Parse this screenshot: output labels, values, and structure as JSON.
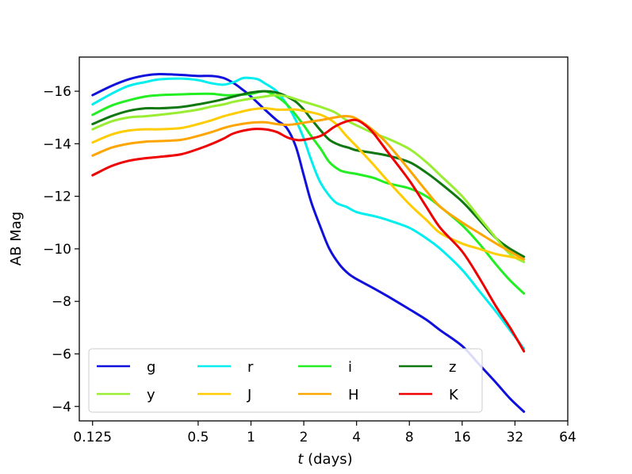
{
  "chart_data": {
    "type": "line",
    "title": "",
    "xlabel_var": "t",
    "xlabel_unit": " (days)",
    "ylabel": "AB Mag",
    "xscale": "log2",
    "xlim": [
      0.105,
      64
    ],
    "ylim": [
      -3.45,
      -17.3
    ],
    "y_inverted": true,
    "x_ticks": [
      {
        "value": 0.125,
        "label": "0.125"
      },
      {
        "value": 0.5,
        "label": "0.5"
      },
      {
        "value": 1,
        "label": "1"
      },
      {
        "value": 2,
        "label": "2"
      },
      {
        "value": 4,
        "label": "4"
      },
      {
        "value": 8,
        "label": "8"
      },
      {
        "value": 16,
        "label": "16"
      },
      {
        "value": 32,
        "label": "32"
      },
      {
        "value": 64,
        "label": "64"
      }
    ],
    "y_ticks": [
      {
        "value": -16,
        "label": "−16"
      },
      {
        "value": -14,
        "label": "−14"
      },
      {
        "value": -12,
        "label": "−12"
      },
      {
        "value": -10,
        "label": "−10"
      },
      {
        "value": -8,
        "label": "−8"
      },
      {
        "value": -6,
        "label": "−6"
      },
      {
        "value": -4,
        "label": "−4"
      }
    ],
    "legend_position": "lower-left",
    "legend_columns": 4,
    "series": [
      {
        "name": "g",
        "color": "#1010dd",
        "x": [
          0.125,
          0.16,
          0.2,
          0.25,
          0.3,
          0.4,
          0.5,
          0.6,
          0.7,
          0.8,
          0.9,
          1.0,
          1.2,
          1.4,
          1.6,
          1.8,
          2.0,
          2.2,
          2.5,
          2.8,
          3.2,
          3.6,
          4.0,
          5.0,
          6.0,
          8.0,
          10.0,
          12.0,
          16.0,
          20.0,
          25.0,
          30.0,
          36.0
        ],
        "y": [
          -15.85,
          -16.2,
          -16.45,
          -16.6,
          -16.65,
          -16.62,
          -16.58,
          -16.58,
          -16.5,
          -16.3,
          -16.05,
          -15.8,
          -15.3,
          -14.9,
          -14.6,
          -13.9,
          -12.8,
          -11.8,
          -10.8,
          -10.0,
          -9.4,
          -9.05,
          -8.85,
          -8.5,
          -8.2,
          -7.7,
          -7.3,
          -6.9,
          -6.3,
          -5.6,
          -4.9,
          -4.3,
          -3.8
        ]
      },
      {
        "name": "r",
        "color": "#00eeee",
        "x": [
          0.125,
          0.16,
          0.2,
          0.25,
          0.3,
          0.4,
          0.5,
          0.6,
          0.7,
          0.8,
          0.9,
          1.0,
          1.1,
          1.2,
          1.4,
          1.6,
          1.8,
          2.0,
          2.2,
          2.5,
          3.0,
          3.5,
          4.0,
          5.0,
          6.0,
          8.0,
          10.0,
          12.0,
          16.0,
          20.0,
          25.0,
          30.0,
          36.0
        ],
        "y": [
          -15.5,
          -15.9,
          -16.2,
          -16.35,
          -16.45,
          -16.48,
          -16.42,
          -16.3,
          -16.25,
          -16.35,
          -16.5,
          -16.5,
          -16.45,
          -16.3,
          -16.0,
          -15.5,
          -14.9,
          -14.2,
          -13.4,
          -12.5,
          -11.8,
          -11.6,
          -11.4,
          -11.25,
          -11.1,
          -10.8,
          -10.4,
          -10.0,
          -9.2,
          -8.4,
          -7.6,
          -6.9,
          -6.2
        ]
      },
      {
        "name": "i",
        "color": "#22ee22",
        "x": [
          0.125,
          0.16,
          0.2,
          0.25,
          0.3,
          0.4,
          0.5,
          0.6,
          0.7,
          0.8,
          1.0,
          1.2,
          1.4,
          1.6,
          1.8,
          2.0,
          2.2,
          2.5,
          2.8,
          3.2,
          3.6,
          4.0,
          5.0,
          6.0,
          8.0,
          10.0,
          12.0,
          16.0,
          20.0,
          25.0,
          30.0,
          36.0
        ],
        "y": [
          -15.1,
          -15.45,
          -15.65,
          -15.8,
          -15.85,
          -15.88,
          -15.9,
          -15.9,
          -15.85,
          -15.85,
          -15.9,
          -16.0,
          -15.8,
          -15.5,
          -15.1,
          -14.7,
          -14.3,
          -13.8,
          -13.3,
          -13.0,
          -12.9,
          -12.85,
          -12.7,
          -12.5,
          -12.3,
          -12.0,
          -11.6,
          -10.9,
          -10.2,
          -9.4,
          -8.8,
          -8.3
        ]
      },
      {
        "name": "z",
        "color": "#107810",
        "x": [
          0.125,
          0.16,
          0.2,
          0.25,
          0.3,
          0.4,
          0.5,
          0.6,
          0.7,
          0.8,
          1.0,
          1.2,
          1.4,
          1.6,
          1.8,
          2.0,
          2.2,
          2.5,
          2.8,
          3.2,
          3.6,
          4.0,
          5.0,
          6.0,
          8.0,
          10.0,
          12.0,
          16.0,
          20.0,
          25.0,
          30.0,
          36.0
        ],
        "y": [
          -14.75,
          -15.05,
          -15.25,
          -15.35,
          -15.35,
          -15.4,
          -15.5,
          -15.6,
          -15.7,
          -15.8,
          -15.95,
          -16.0,
          -15.95,
          -15.8,
          -15.6,
          -15.3,
          -14.95,
          -14.5,
          -14.15,
          -13.95,
          -13.85,
          -13.75,
          -13.65,
          -13.55,
          -13.3,
          -12.9,
          -12.5,
          -11.8,
          -11.1,
          -10.4,
          -10.0,
          -9.7
        ]
      },
      {
        "name": "y",
        "color": "#99ee33",
        "x": [
          0.125,
          0.16,
          0.2,
          0.25,
          0.3,
          0.4,
          0.5,
          0.6,
          0.7,
          0.8,
          1.0,
          1.2,
          1.4,
          1.6,
          1.8,
          2.0,
          2.5,
          3.0,
          3.5,
          4.0,
          5.0,
          6.0,
          8.0,
          10.0,
          12.0,
          16.0,
          20.0,
          25.0,
          30.0,
          36.0
        ],
        "y": [
          -14.55,
          -14.85,
          -15.0,
          -15.05,
          -15.1,
          -15.2,
          -15.3,
          -15.42,
          -15.5,
          -15.6,
          -15.72,
          -15.8,
          -15.85,
          -15.8,
          -15.7,
          -15.6,
          -15.4,
          -15.2,
          -14.9,
          -14.7,
          -14.4,
          -14.2,
          -13.8,
          -13.3,
          -12.8,
          -12.0,
          -11.2,
          -10.4,
          -9.8,
          -9.5
        ]
      },
      {
        "name": "J",
        "color": "#ffcc00",
        "x": [
          0.125,
          0.16,
          0.2,
          0.25,
          0.3,
          0.4,
          0.5,
          0.6,
          0.7,
          0.8,
          1.0,
          1.2,
          1.4,
          1.6,
          1.8,
          2.0,
          2.5,
          3.0,
          3.5,
          4.0,
          5.0,
          6.0,
          8.0,
          10.0,
          12.0,
          16.0,
          20.0,
          25.0,
          30.0,
          36.0
        ],
        "y": [
          -14.05,
          -14.35,
          -14.5,
          -14.55,
          -14.55,
          -14.6,
          -14.75,
          -14.9,
          -15.05,
          -15.15,
          -15.3,
          -15.35,
          -15.3,
          -15.3,
          -15.3,
          -15.25,
          -15.1,
          -14.8,
          -14.3,
          -13.9,
          -13.2,
          -12.6,
          -11.7,
          -11.1,
          -10.6,
          -10.2,
          -10.0,
          -9.8,
          -9.7,
          -9.6
        ]
      },
      {
        "name": "H",
        "color": "#ffa500",
        "x": [
          0.125,
          0.16,
          0.2,
          0.25,
          0.3,
          0.4,
          0.5,
          0.6,
          0.7,
          0.8,
          1.0,
          1.2,
          1.4,
          1.6,
          1.8,
          2.0,
          2.5,
          3.0,
          3.5,
          4.0,
          5.0,
          6.0,
          8.0,
          10.0,
          12.0,
          16.0,
          20.0,
          25.0,
          30.0,
          36.0
        ],
        "y": [
          -13.55,
          -13.85,
          -14.0,
          -14.08,
          -14.1,
          -14.15,
          -14.3,
          -14.45,
          -14.6,
          -14.7,
          -14.8,
          -14.82,
          -14.75,
          -14.72,
          -14.75,
          -14.8,
          -14.9,
          -15.0,
          -15.05,
          -14.95,
          -14.5,
          -14.0,
          -13.0,
          -12.2,
          -11.6,
          -11.0,
          -10.6,
          -10.2,
          -9.9,
          -9.6
        ]
      },
      {
        "name": "K",
        "color": "#ee0000",
        "x": [
          0.125,
          0.16,
          0.2,
          0.25,
          0.3,
          0.4,
          0.5,
          0.6,
          0.7,
          0.8,
          1.0,
          1.2,
          1.4,
          1.6,
          1.8,
          2.0,
          2.5,
          3.0,
          3.5,
          4.0,
          4.5,
          5.0,
          6.0,
          8.0,
          10.0,
          12.0,
          16.0,
          20.0,
          25.0,
          30.0,
          36.0
        ],
        "y": [
          -12.8,
          -13.15,
          -13.35,
          -13.45,
          -13.5,
          -13.6,
          -13.8,
          -14.0,
          -14.2,
          -14.4,
          -14.55,
          -14.55,
          -14.45,
          -14.25,
          -14.15,
          -14.15,
          -14.3,
          -14.65,
          -14.85,
          -14.9,
          -14.7,
          -14.4,
          -13.7,
          -12.6,
          -11.6,
          -10.8,
          -9.9,
          -8.9,
          -7.8,
          -7.0,
          -6.1
        ]
      }
    ]
  }
}
